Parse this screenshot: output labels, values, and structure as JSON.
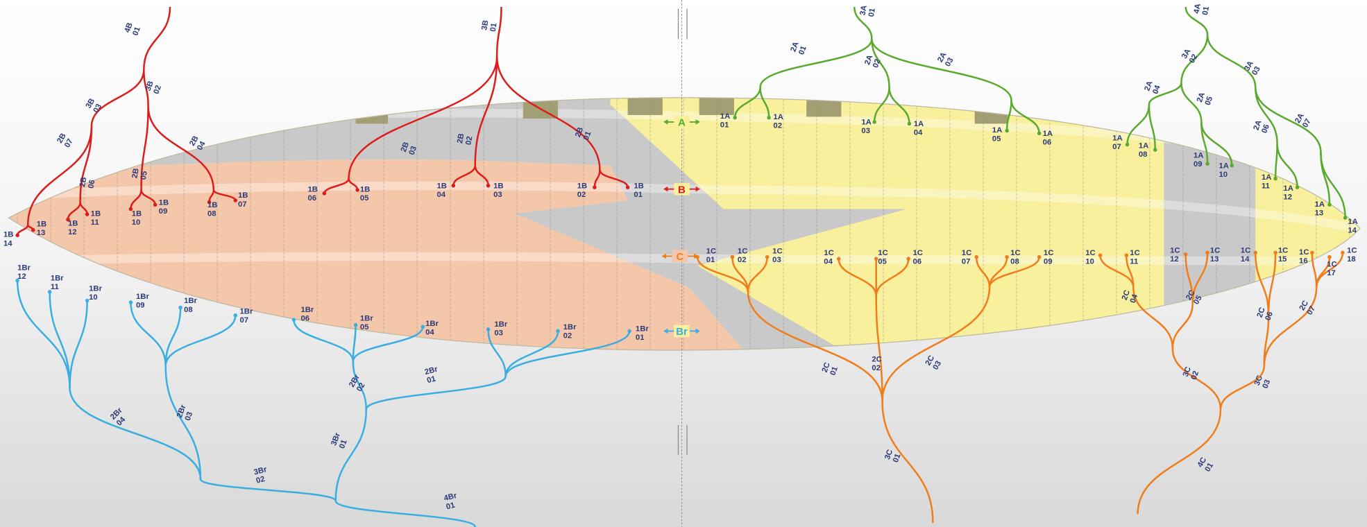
{
  "row_markers": [
    "A",
    "B",
    "C",
    "Br"
  ],
  "a_lines": [
    [
      "1A",
      "01"
    ],
    [
      "1A",
      "02"
    ],
    [
      "1A",
      "03"
    ],
    [
      "1A",
      "04"
    ],
    [
      "1A",
      "05"
    ],
    [
      "1A",
      "06"
    ],
    [
      "1A",
      "07"
    ],
    [
      "1A",
      "08"
    ],
    [
      "1A",
      "09"
    ],
    [
      "1A",
      "10"
    ],
    [
      "1A",
      "11"
    ],
    [
      "1A",
      "12"
    ],
    [
      "1A",
      "13"
    ],
    [
      "1A",
      "14"
    ],
    [
      "2A",
      "01"
    ],
    [
      "2A",
      "02"
    ],
    [
      "2A",
      "03"
    ],
    [
      "2A",
      "04"
    ],
    [
      "2A",
      "05"
    ],
    [
      "2A",
      "06"
    ],
    [
      "2A",
      "07"
    ],
    [
      "3A",
      "01"
    ],
    [
      "3A",
      "02"
    ],
    [
      "3A",
      "03"
    ],
    [
      "4A",
      "01"
    ]
  ],
  "b_lines": [
    [
      "1B",
      "01"
    ],
    [
      "1B",
      "02"
    ],
    [
      "1B",
      "03"
    ],
    [
      "1B",
      "04"
    ],
    [
      "1B",
      "05"
    ],
    [
      "1B",
      "06"
    ],
    [
      "1B",
      "07"
    ],
    [
      "1B",
      "08"
    ],
    [
      "1B",
      "09"
    ],
    [
      "1B",
      "10"
    ],
    [
      "1B",
      "11"
    ],
    [
      "1B",
      "12"
    ],
    [
      "1B",
      "13"
    ],
    [
      "1B",
      "14"
    ],
    [
      "2B",
      "01"
    ],
    [
      "2B",
      "02"
    ],
    [
      "2B",
      "03"
    ],
    [
      "2B",
      "04"
    ],
    [
      "2B",
      "05"
    ],
    [
      "2B",
      "06"
    ],
    [
      "2B",
      "07"
    ],
    [
      "3B",
      "01"
    ],
    [
      "3B",
      "02"
    ],
    [
      "3B",
      "03"
    ],
    [
      "4B",
      "01"
    ]
  ],
  "c_lines": [
    [
      "1C",
      "01"
    ],
    [
      "1C",
      "02"
    ],
    [
      "1C",
      "03"
    ],
    [
      "1C",
      "04"
    ],
    [
      "1C",
      "05"
    ],
    [
      "1C",
      "06"
    ],
    [
      "1C",
      "07"
    ],
    [
      "1C",
      "08"
    ],
    [
      "1C",
      "09"
    ],
    [
      "1C",
      "10"
    ],
    [
      "1C",
      "11"
    ],
    [
      "1C",
      "12"
    ],
    [
      "1C",
      "13"
    ],
    [
      "1C",
      "14"
    ],
    [
      "1C",
      "15"
    ],
    [
      "1C",
      "16"
    ],
    [
      "1C",
      "17"
    ],
    [
      "1C",
      "18"
    ],
    [
      "2C",
      "01"
    ],
    [
      "2C",
      "02"
    ],
    [
      "2C",
      "03"
    ],
    [
      "2C",
      "04"
    ],
    [
      "2C",
      "05"
    ],
    [
      "2C",
      "06"
    ],
    [
      "2C",
      "07"
    ],
    [
      "3C",
      "01"
    ],
    [
      "3C",
      "02"
    ],
    [
      "3C",
      "03"
    ],
    [
      "4C",
      "01"
    ]
  ],
  "br_lines": [
    [
      "1Br",
      "01"
    ],
    [
      "1Br",
      "02"
    ],
    [
      "1Br",
      "03"
    ],
    [
      "1Br",
      "04"
    ],
    [
      "1Br",
      "05"
    ],
    [
      "1Br",
      "06"
    ],
    [
      "1Br",
      "07"
    ],
    [
      "1Br",
      "08"
    ],
    [
      "1Br",
      "09"
    ],
    [
      "1Br",
      "10"
    ],
    [
      "1Br",
      "11"
    ],
    [
      "1Br",
      "12"
    ],
    [
      "2Br",
      "01"
    ],
    [
      "2Br",
      "02"
    ],
    [
      "2Br",
      "03"
    ],
    [
      "2Br",
      "04"
    ],
    [
      "3Br",
      "01"
    ],
    [
      "3Br",
      "02"
    ],
    [
      "4Br",
      "01"
    ]
  ]
}
